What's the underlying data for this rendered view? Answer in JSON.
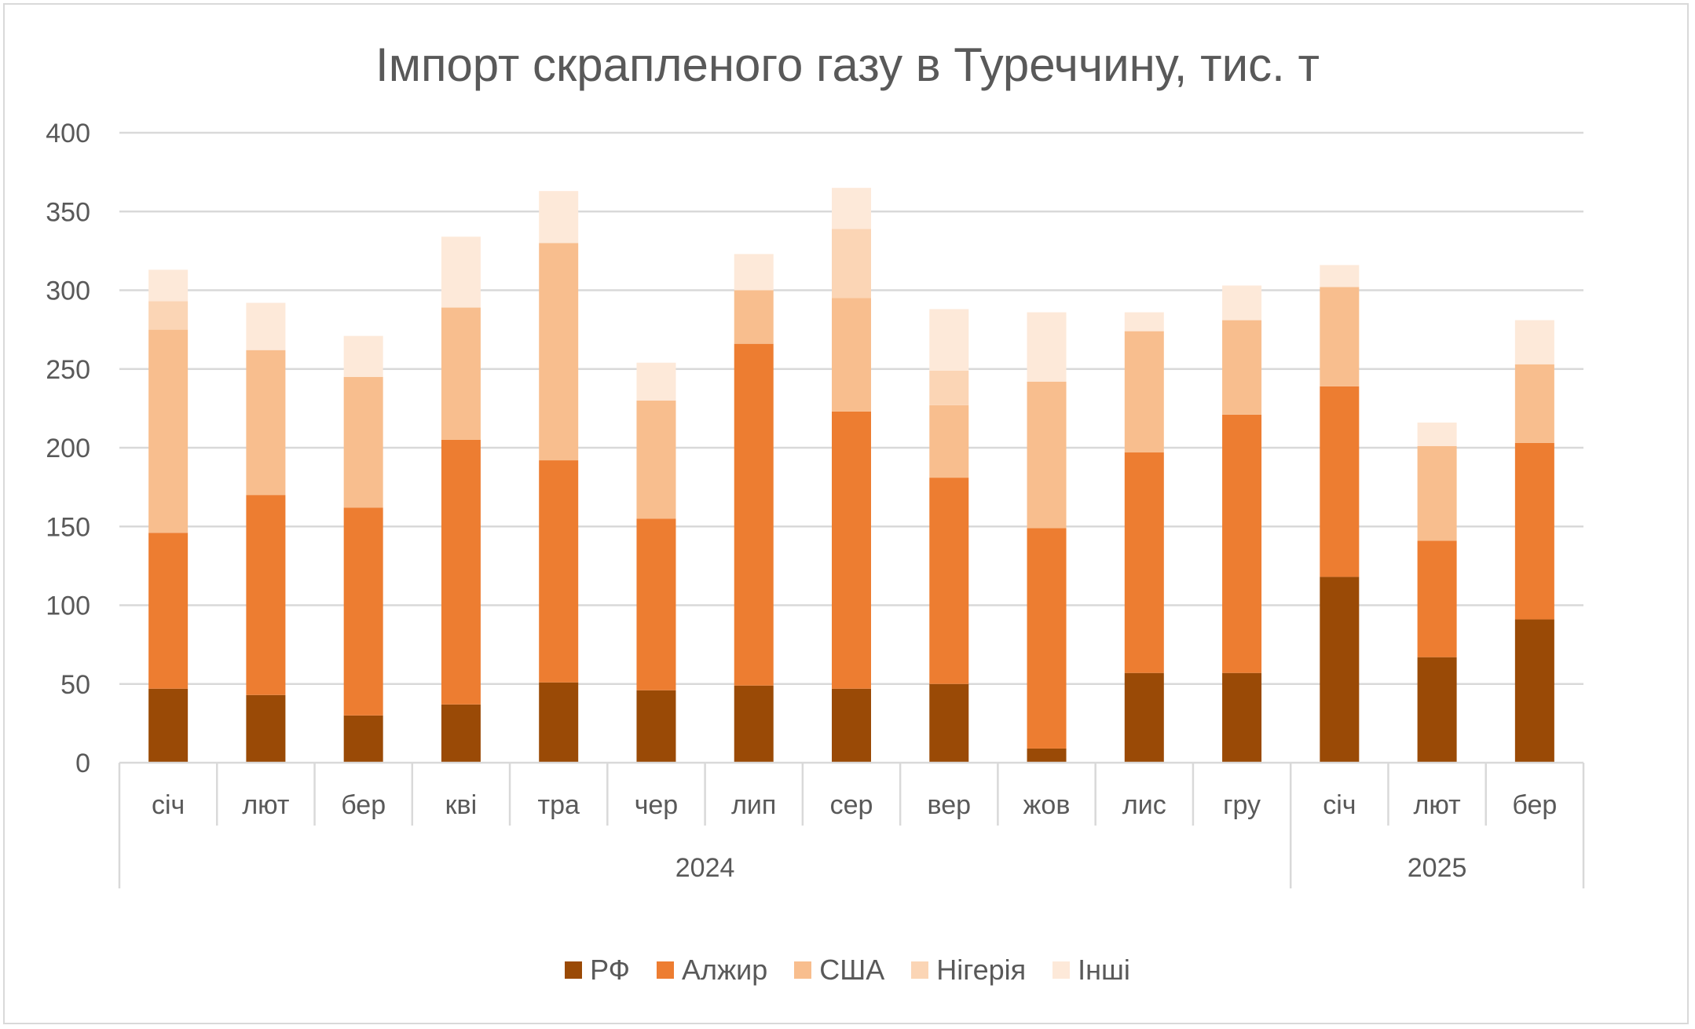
{
  "chart_data": {
    "type": "bar",
    "stacked": true,
    "title": "Імпорт скрапленого газу в Туреччину, тис. т",
    "xlabel": "",
    "ylabel": "",
    "ylim": [
      0,
      400
    ],
    "yticks": [
      0,
      50,
      100,
      150,
      200,
      250,
      300,
      350,
      400
    ],
    "grid": true,
    "legend_position": "bottom",
    "categories": [
      "січ",
      "лют",
      "бер",
      "кві",
      "тра",
      "чер",
      "лип",
      "сер",
      "вер",
      "жов",
      "лис",
      "гру",
      "січ",
      "лют",
      "бер"
    ],
    "groups": [
      {
        "label": "2024",
        "count": 12
      },
      {
        "label": "2025",
        "count": 3
      }
    ],
    "series": [
      {
        "name": "РФ",
        "color": "#9a4a06",
        "values": [
          47,
          43,
          30,
          37,
          51,
          46,
          49,
          47,
          50,
          9,
          57,
          57,
          118,
          67,
          91
        ]
      },
      {
        "name": "Алжир",
        "color": "#ed7d31",
        "values": [
          99,
          127,
          132,
          168,
          141,
          109,
          217,
          176,
          131,
          140,
          140,
          164,
          121,
          74,
          112
        ]
      },
      {
        "name": "США",
        "color": "#f8be8e",
        "values": [
          129,
          92,
          83,
          84,
          138,
          75,
          34,
          72,
          46,
          93,
          77,
          60,
          63,
          60,
          50
        ]
      },
      {
        "name": "Нігерія",
        "color": "#fbd5b5",
        "values": [
          18,
          0,
          0,
          0,
          0,
          0,
          0,
          44,
          22,
          0,
          0,
          0,
          0,
          0,
          0
        ]
      },
      {
        "name": "Інші",
        "color": "#fde9d9",
        "values": [
          20,
          30,
          26,
          45,
          33,
          24,
          23,
          26,
          39,
          44,
          12,
          22,
          14,
          15,
          28
        ]
      }
    ]
  }
}
